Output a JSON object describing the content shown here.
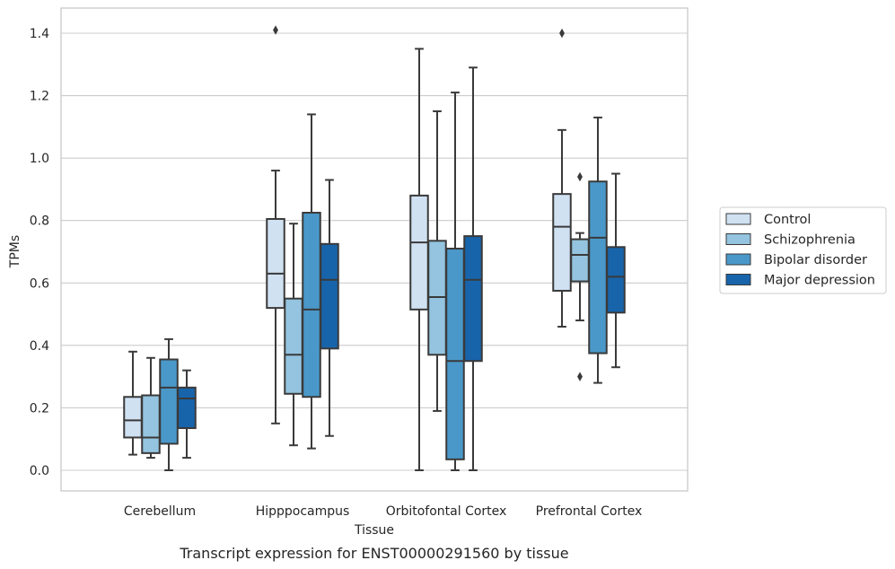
{
  "chart_data": {
    "type": "boxplot",
    "title": "Transcript expression for ENST00000291560 by tissue",
    "xlabel": "Tissue",
    "ylabel": "TPMs",
    "ylim": [
      -0.07,
      1.48
    ],
    "yticks": [
      0.0,
      0.2,
      0.4,
      0.6,
      0.8,
      1.0,
      1.2,
      1.4
    ],
    "ytick_labels": [
      "0.0",
      "0.2",
      "0.4",
      "0.6",
      "0.8",
      "1.0",
      "1.2",
      "1.4"
    ],
    "grid": "horizontal",
    "legend_position": "right",
    "categories": [
      "Cerebellum",
      "Hipppocampus",
      "Orbitofontal Cortex",
      "Prefrontal Cortex"
    ],
    "series": [
      {
        "name": "Control",
        "color": "#d0e1f2",
        "boxes": [
          {
            "whislo": 0.05,
            "q1": 0.105,
            "med": 0.16,
            "q3": 0.235,
            "whishi": 0.38,
            "fliers": []
          },
          {
            "whislo": 0.15,
            "q1": 0.52,
            "med": 0.63,
            "q3": 0.805,
            "whishi": 0.96,
            "fliers": [
              1.41
            ]
          },
          {
            "whislo": 0.0,
            "q1": 0.515,
            "med": 0.73,
            "q3": 0.88,
            "whishi": 1.35,
            "fliers": []
          },
          {
            "whislo": 0.46,
            "q1": 0.575,
            "med": 0.78,
            "q3": 0.885,
            "whishi": 1.09,
            "fliers": [
              1.4
            ]
          }
        ]
      },
      {
        "name": "Schizophrenia",
        "color": "#94c4df",
        "boxes": [
          {
            "whislo": 0.04,
            "q1": 0.055,
            "med": 0.105,
            "q3": 0.24,
            "whishi": 0.36,
            "fliers": []
          },
          {
            "whislo": 0.08,
            "q1": 0.245,
            "med": 0.37,
            "q3": 0.55,
            "whishi": 0.79,
            "fliers": []
          },
          {
            "whislo": 0.19,
            "q1": 0.37,
            "med": 0.555,
            "q3": 0.735,
            "whishi": 1.15,
            "fliers": []
          },
          {
            "whislo": 0.48,
            "q1": 0.605,
            "med": 0.69,
            "q3": 0.74,
            "whishi": 0.76,
            "fliers": [
              0.94,
              0.3
            ]
          }
        ]
      },
      {
        "name": "Bipolar disorder",
        "color": "#4a98c9",
        "boxes": [
          {
            "whislo": 0.0,
            "q1": 0.085,
            "med": 0.265,
            "q3": 0.355,
            "whishi": 0.42,
            "fliers": []
          },
          {
            "whislo": 0.07,
            "q1": 0.235,
            "med": 0.515,
            "q3": 0.825,
            "whishi": 1.14,
            "fliers": []
          },
          {
            "whislo": 0.0,
            "q1": 0.035,
            "med": 0.35,
            "q3": 0.71,
            "whishi": 1.21,
            "fliers": []
          },
          {
            "whislo": 0.28,
            "q1": 0.375,
            "med": 0.745,
            "q3": 0.925,
            "whishi": 1.13,
            "fliers": []
          }
        ]
      },
      {
        "name": "Major depression",
        "color": "#1764ab",
        "boxes": [
          {
            "whislo": 0.04,
            "q1": 0.135,
            "med": 0.23,
            "q3": 0.265,
            "whishi": 0.32,
            "fliers": []
          },
          {
            "whislo": 0.11,
            "q1": 0.39,
            "med": 0.61,
            "q3": 0.725,
            "whishi": 0.93,
            "fliers": []
          },
          {
            "whislo": 0.0,
            "q1": 0.35,
            "med": 0.61,
            "q3": 0.75,
            "whishi": 1.29,
            "fliers": []
          },
          {
            "whislo": 0.33,
            "q1": 0.505,
            "med": 0.62,
            "q3": 0.715,
            "whishi": 0.95,
            "fliers": []
          }
        ]
      }
    ]
  }
}
